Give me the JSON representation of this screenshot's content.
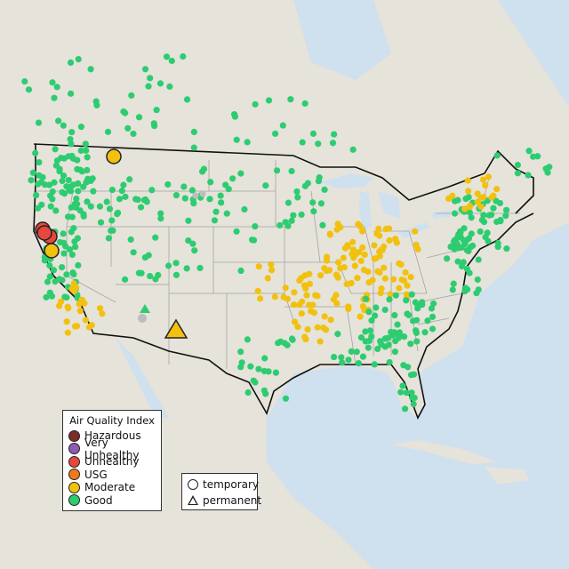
{
  "legend": {
    "title": "Air Quality Index",
    "categories": [
      {
        "label": "Hazardous",
        "color": "#7e2b2b"
      },
      {
        "label": "Very Unhealthy",
        "color": "#8e5bb5"
      },
      {
        "label": "Unhealthy",
        "color": "#e8473c"
      },
      {
        "label": "USG",
        "color": "#ef7a1a"
      },
      {
        "label": "Moderate",
        "color": "#f2c10f"
      },
      {
        "label": "Good",
        "color": "#2ecc71"
      }
    ]
  },
  "monitor_legend": {
    "temporary_label": "temporary",
    "permanent_label": "permanent"
  },
  "colors": {
    "water": "#cfe0ee",
    "land": "#e8e6df",
    "state_line": "#9a9a9a",
    "border_line": "#111111",
    "no_data": "#bdbdbd"
  }
}
